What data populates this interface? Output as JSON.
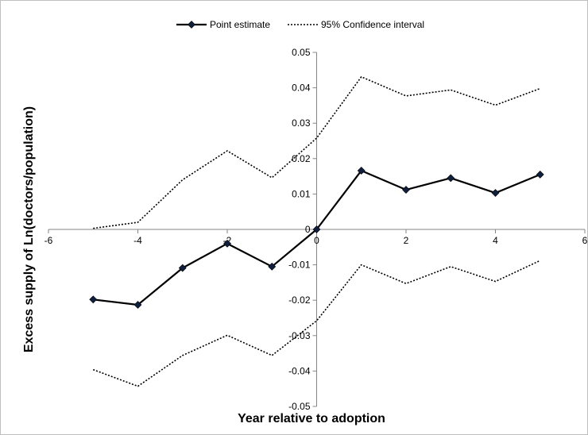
{
  "chart_data": {
    "type": "line",
    "xlabel": "Year relative to adoption",
    "ylabel": "Excess supply of Ln(doctors/population)",
    "xlim": [
      -6,
      6
    ],
    "ylim": [
      -0.05,
      0.05
    ],
    "x_ticks": [
      "-6",
      "-4",
      "-2",
      "0",
      "2",
      "4",
      "6"
    ],
    "y_ticks": [
      "-0.05",
      "-0.04",
      "-0.03",
      "-0.02",
      "-0.01",
      "0",
      "0.01",
      "0.02",
      "0.03",
      "0.04",
      "0.05"
    ],
    "grid": false,
    "legend_position": "top",
    "x": [
      -5,
      -4,
      -3,
      -2,
      -1,
      0,
      1,
      2,
      3,
      4,
      5
    ],
    "series": [
      {
        "name": "Point estimate",
        "style": "solid-diamond",
        "color": "#000000",
        "marker_color": "#0f1f3d",
        "values": [
          -0.0198,
          -0.0213,
          -0.0109,
          -0.004,
          -0.0105,
          0.0,
          0.0166,
          0.0112,
          0.0145,
          0.0103,
          0.0155
        ]
      },
      {
        "name": "95% Confidence interval",
        "style": "dotted",
        "color": "#000000",
        "values": [
          0.0003,
          0.002,
          0.014,
          0.0222,
          0.0146,
          0.0258,
          0.0431,
          0.0377,
          0.0394,
          0.0351,
          0.0398
        ]
      },
      {
        "name": "",
        "style": "dotted",
        "color": "#000000",
        "values": [
          -0.0396,
          -0.0443,
          -0.0356,
          -0.0299,
          -0.0356,
          -0.0258,
          -0.01,
          -0.0153,
          -0.0105,
          -0.0147,
          -0.0088
        ]
      }
    ]
  }
}
